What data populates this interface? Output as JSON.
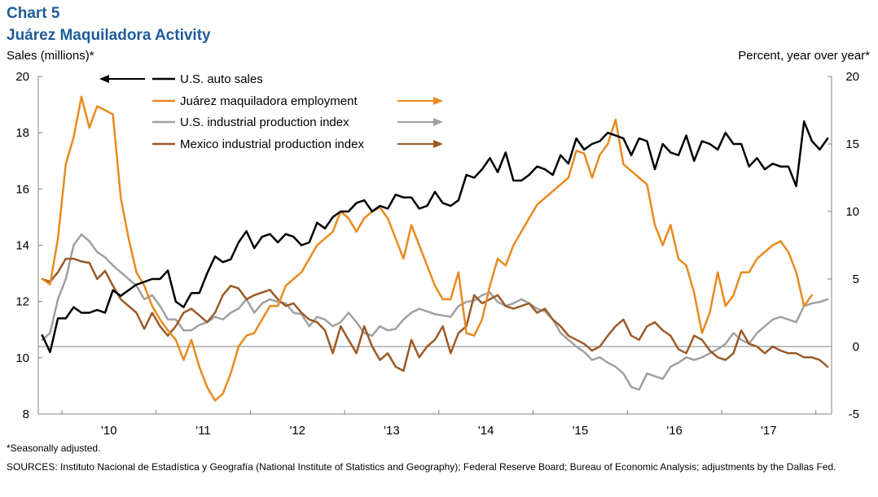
{
  "header": {
    "chart_number": "Chart 5",
    "title": "Juárez Maquiladora Activity",
    "left_axis_title": "Sales  (millions)*",
    "right_axis_title": "Percent, year over year*"
  },
  "footer": {
    "footnote": "*Seasonally adjusted.",
    "sources": "SOURCES:  Instituto Nacional de Estadística y Geografía (National Institute of Statistics and Geography); Federal Reserve Board; Bureau of Economic Analysis; adjustments by the Dallas Fed."
  },
  "colors": {
    "us_auto": "#000000",
    "juarez": "#e98a1f",
    "us_ip": "#a0a0a0",
    "mexico_ip": "#9b5a26",
    "axis": "#808080"
  },
  "chart_data": {
    "type": "line",
    "x_start": "2009-10",
    "x_frequency": "monthly",
    "x_tick_labels": [
      "'10",
      "'11",
      "'12",
      "'13",
      "'14",
      "'15",
      "'16",
      "'17"
    ],
    "y_left": {
      "label": "Sales  (millions)*",
      "range": [
        8,
        20
      ],
      "ticks": [
        8,
        10,
        12,
        14,
        16,
        18,
        20
      ]
    },
    "y_right": {
      "label": "Percent, year over year*",
      "range": [
        -5,
        20
      ],
      "ticks": [
        -5,
        0,
        5,
        10,
        15,
        20
      ]
    },
    "legend_position": "top-center",
    "grid": false,
    "series": [
      {
        "name": "U.S. auto sales",
        "axis": "left",
        "color_key": "us_auto",
        "values": [
          10.8,
          10.2,
          11.4,
          11.4,
          11.8,
          11.6,
          11.6,
          11.7,
          11.6,
          12.4,
          12.2,
          12.4,
          12.6,
          12.7,
          12.8,
          12.8,
          13.1,
          12.0,
          11.8,
          12.3,
          12.3,
          13.0,
          13.6,
          13.4,
          13.5,
          14.1,
          14.5,
          13.9,
          14.3,
          14.4,
          14.1,
          14.4,
          14.3,
          14.0,
          14.1,
          14.8,
          14.6,
          15.0,
          15.2,
          15.2,
          15.5,
          15.6,
          15.2,
          15.4,
          15.3,
          15.8,
          15.7,
          15.7,
          15.3,
          15.4,
          15.9,
          15.5,
          15.4,
          15.6,
          16.5,
          16.4,
          16.7,
          17.1,
          16.6,
          17.3,
          16.3,
          16.3,
          16.5,
          16.8,
          16.7,
          16.5,
          17.2,
          16.9,
          17.8,
          17.4,
          17.6,
          17.7,
          18.0,
          17.9,
          17.8,
          17.2,
          17.8,
          17.7,
          16.7,
          17.6,
          17.3,
          17.2,
          17.9,
          17.0,
          17.7,
          17.6,
          17.4,
          18.0,
          17.6,
          17.6,
          16.8,
          17.1,
          16.7,
          16.9,
          16.8,
          16.8,
          16.1,
          18.4,
          17.7,
          17.4,
          17.8
        ]
      },
      {
        "name": "Juárez maquiladora employment",
        "axis": "right",
        "color_key": "juarez",
        "values": [
          5.0,
          4.6,
          8.0,
          13.5,
          15.5,
          18.5,
          16.2,
          17.8,
          17.5,
          17.2,
          11.0,
          8.0,
          5.5,
          4.5,
          3.0,
          2.0,
          1.2,
          0.5,
          -1.0,
          0.5,
          -1.5,
          -3.0,
          -4.0,
          -3.5,
          -2.0,
          0.0,
          0.8,
          1.0,
          2.0,
          3.0,
          3.0,
          4.5,
          5.0,
          5.5,
          6.5,
          7.5,
          8.0,
          8.5,
          10.0,
          9.5,
          8.5,
          9.5,
          10.0,
          10.3,
          9.5,
          8.0,
          6.5,
          9.0,
          7.5,
          6.0,
          4.5,
          3.5,
          3.5,
          5.5,
          1.0,
          0.8,
          2.0,
          4.5,
          6.5,
          6.0,
          7.5,
          8.5,
          9.5,
          10.5,
          11.0,
          11.5,
          12.0,
          12.5,
          14.5,
          14.3,
          12.5,
          14.2,
          15.0,
          16.8,
          13.5,
          13.0,
          12.5,
          12.0,
          9.0,
          7.5,
          9.0,
          6.5,
          6.0,
          4.0,
          1.0,
          2.5,
          5.5,
          3.0,
          3.8,
          5.5,
          5.5,
          6.5,
          7.0,
          7.5,
          7.8,
          7.0,
          5.5,
          3.0,
          3.8
        ]
      },
      {
        "name": "U.S. industrial production index",
        "axis": "right",
        "color_key": "us_ip",
        "values": [
          0.5,
          1.0,
          3.5,
          5.0,
          7.5,
          8.3,
          7.8,
          7.0,
          6.6,
          6.0,
          5.5,
          5.0,
          4.5,
          3.5,
          3.8,
          3.0,
          2.0,
          2.0,
          1.2,
          1.2,
          1.6,
          1.8,
          2.2,
          2.0,
          2.5,
          2.8,
          3.5,
          2.5,
          3.2,
          3.5,
          3.3,
          3.2,
          2.5,
          2.4,
          1.5,
          2.2,
          2.0,
          1.5,
          1.8,
          2.5,
          1.8,
          1.0,
          0.8,
          1.5,
          1.2,
          1.3,
          2.0,
          2.5,
          2.8,
          2.6,
          2.4,
          2.3,
          2.2,
          3.0,
          3.3,
          3.4,
          3.8,
          4.0,
          3.3,
          3.0,
          3.2,
          3.5,
          3.2,
          2.8,
          2.6,
          2.0,
          1.0,
          0.5,
          0.0,
          -0.4,
          -1.0,
          -0.8,
          -1.2,
          -1.5,
          -2.0,
          -3.0,
          -3.2,
          -2.0,
          -2.2,
          -2.4,
          -1.5,
          -1.2,
          -0.8,
          -1.0,
          -0.8,
          -0.5,
          -0.2,
          0.2,
          1.0,
          0.5,
          0.2,
          1.0,
          1.5,
          2.0,
          2.2,
          2.0,
          1.8,
          3.0,
          3.2,
          3.3,
          3.5
        ]
      },
      {
        "name": "Mexico industrial production index",
        "axis": "right",
        "color_key": "mexico_ip",
        "values": [
          5.0,
          4.8,
          5.5,
          6.5,
          6.5,
          6.3,
          6.2,
          5.0,
          5.6,
          4.5,
          3.5,
          3.0,
          2.5,
          1.3,
          2.5,
          1.5,
          0.8,
          1.5,
          2.5,
          2.8,
          2.3,
          1.8,
          2.5,
          3.8,
          4.5,
          4.3,
          3.5,
          3.8,
          4.0,
          4.2,
          3.5,
          3.0,
          3.2,
          2.5,
          2.0,
          1.8,
          1.2,
          -0.5,
          1.5,
          0.5,
          -0.5,
          1.5,
          0.0,
          -1.0,
          -0.5,
          -1.5,
          -1.8,
          0.5,
          -0.8,
          0.0,
          0.5,
          1.5,
          -0.5,
          1.0,
          1.5,
          3.8,
          3.2,
          3.5,
          3.8,
          3.0,
          2.8,
          3.0,
          3.2,
          2.5,
          2.8,
          2.0,
          1.5,
          0.8,
          0.5,
          0.2,
          -0.3,
          0.0,
          0.8,
          1.5,
          2.0,
          0.8,
          0.5,
          1.5,
          1.8,
          1.2,
          0.8,
          -0.2,
          -0.5,
          0.8,
          0.5,
          -0.3,
          -0.8,
          -1.0,
          -0.5,
          1.2,
          0.2,
          0.0,
          -0.5,
          0.0,
          -0.3,
          -0.5,
          -0.5,
          -0.8,
          -0.8,
          -1.0,
          -1.5
        ]
      }
    ]
  }
}
